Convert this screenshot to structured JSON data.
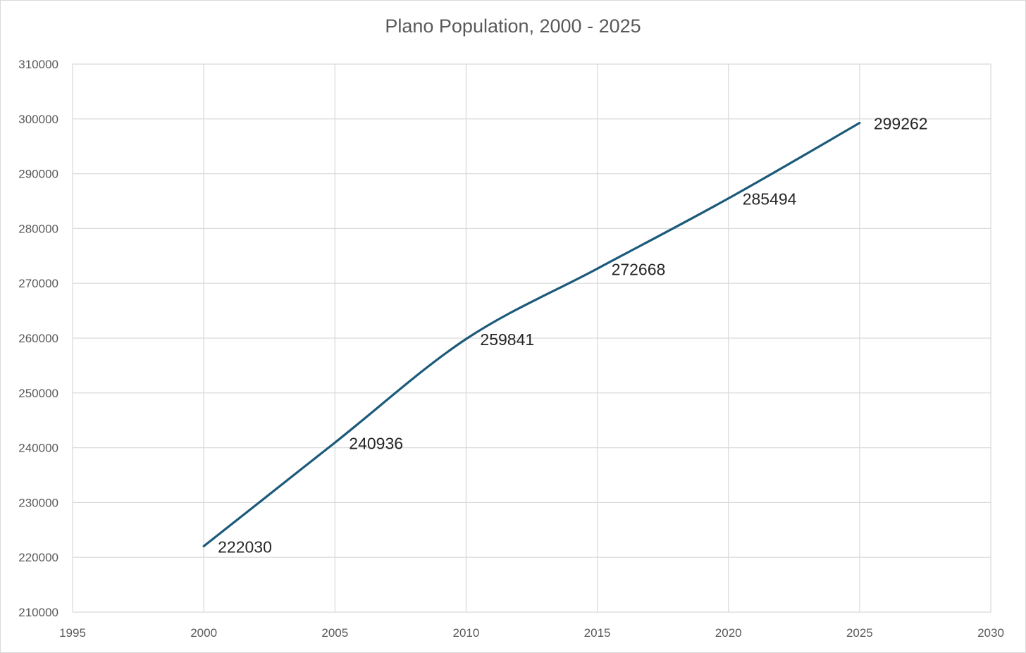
{
  "chart_data": {
    "type": "scatter",
    "title": "Plano Population, 2000 - 2025",
    "x": [
      2000,
      2005,
      2010,
      2015,
      2020,
      2025
    ],
    "y": [
      222030,
      240936,
      259841,
      272668,
      285494,
      299262
    ],
    "data_labels": [
      "222030",
      "240936",
      "259841",
      "272668",
      "285494",
      "299262"
    ],
    "smoothed_line": true,
    "markers": false,
    "xlim": [
      1995,
      2030
    ],
    "ylim": [
      210000,
      310000
    ],
    "x_ticks": [
      "1995",
      "2000",
      "2005",
      "2010",
      "2015",
      "2020",
      "2025",
      "2030"
    ],
    "y_ticks": [
      "210000",
      "220000",
      "230000",
      "240000",
      "250000",
      "260000",
      "270000",
      "280000",
      "290000",
      "300000",
      "310000"
    ],
    "grid": true,
    "legend": "none",
    "xlabel": "",
    "ylabel": "",
    "colors": {
      "line": "#1b5a7a",
      "grid": "#d9d9d9",
      "axis_text": "#595959",
      "data_label": "#262626"
    }
  }
}
